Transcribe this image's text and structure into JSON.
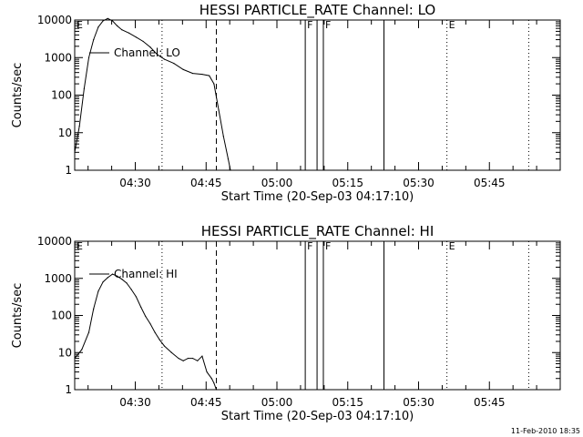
{
  "timestamp": "11-Feb-2010 18:35",
  "chart_data": [
    {
      "type": "line",
      "title": "HESSI PARTICLE_RATE Channel: LO",
      "xlabel": "Start Time (20-Sep-03 04:17:10)",
      "ylabel": "Counts/sec",
      "y_scale": "log",
      "ylim": [
        1,
        10000
      ],
      "xlim": [
        "04:17:10",
        "06:00:00"
      ],
      "x_ticks": [
        "04:30",
        "04:45",
        "05:00",
        "05:15",
        "05:30",
        "05:45"
      ],
      "y_ticks": [
        "1",
        "10",
        "100",
        "1000",
        "10000"
      ],
      "legend": "Channel: LO",
      "markers": [
        {
          "time": "04:17:10",
          "label": "E",
          "style": "dotted"
        },
        {
          "time": "04:35:40",
          "label": "",
          "style": "dotted"
        },
        {
          "time": "04:47:10",
          "label": "",
          "style": "dashed"
        },
        {
          "time": "05:06:00",
          "label": "F",
          "style": "solid"
        },
        {
          "time": "05:08:30",
          "label": "",
          "style": "solid"
        },
        {
          "time": "05:09:50",
          "label": "F",
          "style": "solid"
        },
        {
          "time": "05:22:40",
          "label": "",
          "style": "solid"
        },
        {
          "time": "05:36:00",
          "label": "E",
          "style": "dotted"
        },
        {
          "time": "05:53:20",
          "label": "",
          "style": "dotted"
        }
      ],
      "series": [
        {
          "name": "Channel: LO",
          "x": [
            "04:17:10",
            "04:18:10",
            "04:19:10",
            "04:20:10",
            "04:21:10",
            "04:22:10",
            "04:23:10",
            "04:24:10",
            "04:25:10",
            "04:26:10",
            "04:27:10",
            "04:28:40",
            "04:30:10",
            "04:31:40",
            "04:33:10",
            "04:34:40",
            "04:36:10",
            "04:38:10",
            "04:40:10",
            "04:42:10",
            "04:44:10",
            "04:45:40",
            "04:46:40",
            "04:47:40",
            "04:48:40",
            "04:49:40",
            "04:50:10"
          ],
          "y": [
            3,
            15,
            150,
            1000,
            3000,
            6500,
            9500,
            11000,
            9500,
            7000,
            5500,
            4500,
            3500,
            2700,
            1900,
            1200,
            900,
            700,
            480,
            380,
            360,
            330,
            200,
            40,
            8,
            2,
            1
          ]
        }
      ]
    },
    {
      "type": "line",
      "title": "HESSI PARTICLE_RATE Channel: HI",
      "xlabel": "Start Time (20-Sep-03 04:17:10)",
      "ylabel": "Counts/sec",
      "y_scale": "log",
      "ylim": [
        1,
        10000
      ],
      "xlim": [
        "04:17:10",
        "06:00:00"
      ],
      "x_ticks": [
        "04:30",
        "04:45",
        "05:00",
        "05:15",
        "05:30",
        "05:45"
      ],
      "y_ticks": [
        "1",
        "10",
        "100",
        "1000",
        "10000"
      ],
      "legend": "Channel: HI",
      "markers": [
        {
          "time": "04:17:10",
          "label": "E",
          "style": "dotted"
        },
        {
          "time": "04:35:40",
          "label": "",
          "style": "dotted"
        },
        {
          "time": "04:47:10",
          "label": "",
          "style": "dashed"
        },
        {
          "time": "05:06:00",
          "label": "F",
          "style": "solid"
        },
        {
          "time": "05:08:30",
          "label": "",
          "style": "solid"
        },
        {
          "time": "05:09:50",
          "label": "F",
          "style": "solid"
        },
        {
          "time": "05:22:40",
          "label": "",
          "style": "solid"
        },
        {
          "time": "05:36:00",
          "label": "E",
          "style": "dotted"
        },
        {
          "time": "05:53:20",
          "label": "",
          "style": "dotted"
        }
      ],
      "series": [
        {
          "name": "Channel: HI",
          "x": [
            "04:17:10",
            "04:18:40",
            "04:20:10",
            "04:21:10",
            "04:22:10",
            "04:23:10",
            "04:24:10",
            "04:25:10",
            "04:26:10",
            "04:27:10",
            "04:28:10",
            "04:29:10",
            "04:30:10",
            "04:31:10",
            "04:32:10",
            "04:33:10",
            "04:34:10",
            "04:35:10",
            "04:36:10",
            "04:37:40",
            "04:39:10",
            "04:40:10",
            "04:41:10",
            "04:42:10",
            "04:43:10",
            "04:44:10",
            "04:45:10",
            "04:46:10",
            "04:46:40",
            "04:47:10"
          ],
          "y": [
            7,
            12,
            35,
            150,
            450,
            800,
            1050,
            1300,
            1150,
            950,
            750,
            500,
            320,
            170,
            95,
            60,
            35,
            22,
            15,
            10,
            7,
            6,
            7,
            7,
            6,
            8,
            3,
            2,
            1.5,
            1
          ]
        }
      ]
    }
  ]
}
